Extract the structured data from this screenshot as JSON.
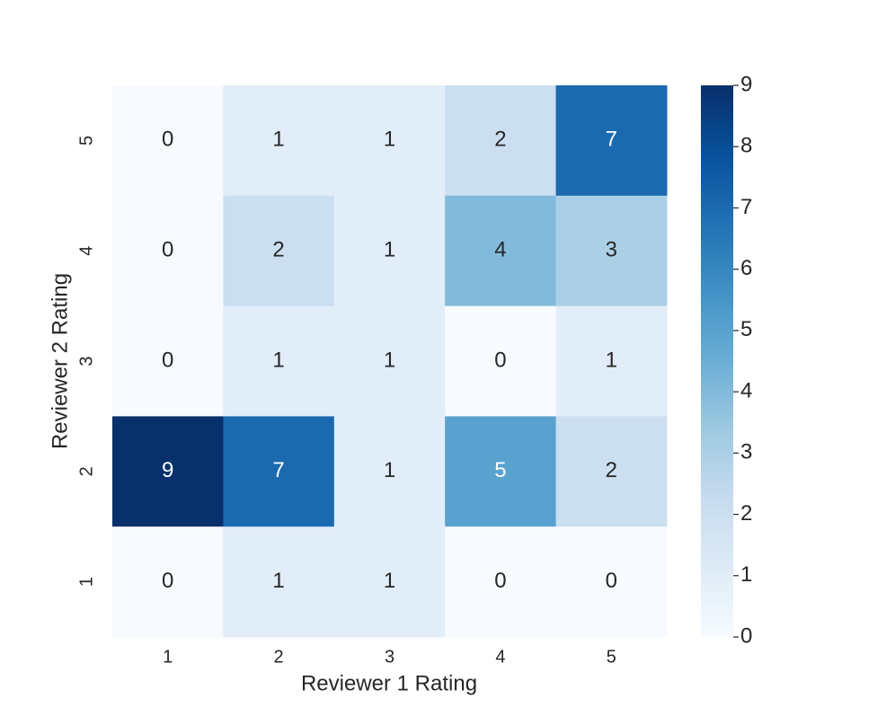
{
  "chart_data": {
    "type": "heatmap",
    "x_label": "Reviewer 1 Rating",
    "y_label": "Reviewer 2 Rating",
    "x_categories": [
      "1",
      "2",
      "3",
      "4",
      "5"
    ],
    "y_categories": [
      "5",
      "4",
      "3",
      "2",
      "1"
    ],
    "values": [
      [
        0,
        1,
        1,
        2,
        7
      ],
      [
        0,
        2,
        1,
        4,
        3
      ],
      [
        0,
        1,
        1,
        0,
        1
      ],
      [
        9,
        7,
        1,
        5,
        2
      ],
      [
        0,
        1,
        1,
        0,
        0
      ]
    ],
    "colormap": "Blues",
    "clim": [
      0,
      9
    ],
    "cticks": [
      0,
      1,
      2,
      3,
      4,
      5,
      6,
      7,
      8,
      9
    ],
    "annotate": true
  }
}
